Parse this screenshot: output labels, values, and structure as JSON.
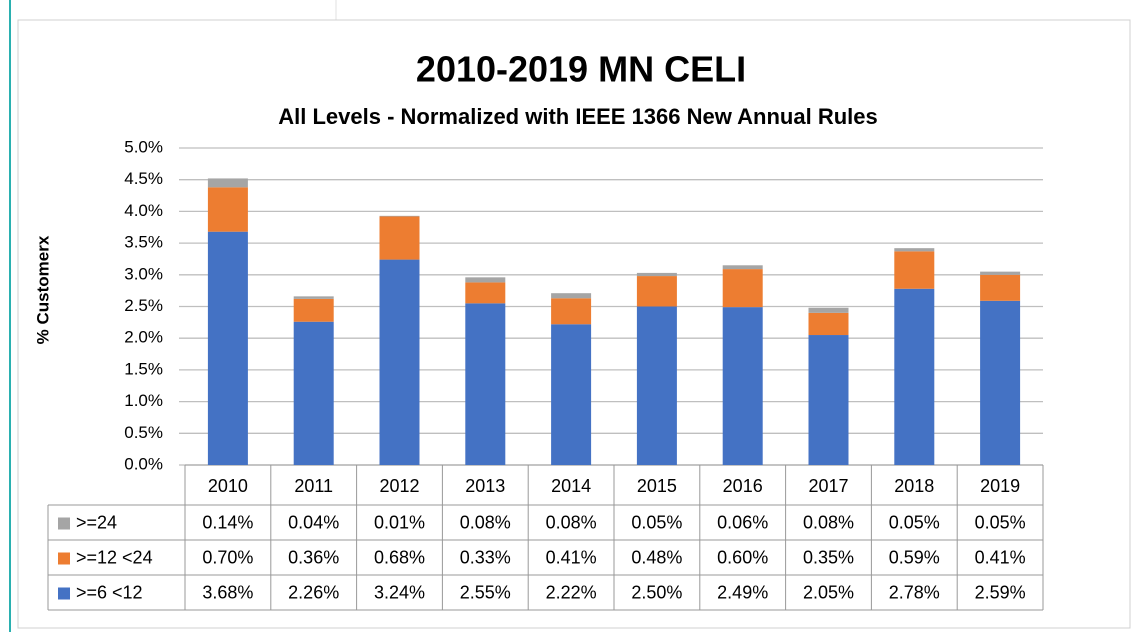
{
  "chart_data": {
    "type": "bar",
    "stacked": true,
    "title": "2010-2019 MN CELI",
    "subtitle": "All Levels - Normalized with IEEE 1366 New Annual Rules",
    "y_label": "% Customerx",
    "categories": [
      "2010",
      "2011",
      "2012",
      "2013",
      "2014",
      "2015",
      "2016",
      "2017",
      "2018",
      "2019"
    ],
    "series": [
      {
        "name": ">=24",
        "color": "#a5a5a5",
        "values": [
          0.14,
          0.04,
          0.01,
          0.08,
          0.08,
          0.05,
          0.06,
          0.08,
          0.05,
          0.05
        ],
        "value_labels": [
          "0.14%",
          "0.04%",
          "0.01%",
          "0.08%",
          "0.08%",
          "0.05%",
          "0.06%",
          "0.08%",
          "0.05%",
          "0.05%"
        ]
      },
      {
        "name": ">=12 <24",
        "color": "#ed7d31",
        "values": [
          0.7,
          0.36,
          0.68,
          0.33,
          0.41,
          0.48,
          0.6,
          0.35,
          0.59,
          0.41
        ],
        "value_labels": [
          "0.70%",
          "0.36%",
          "0.68%",
          "0.33%",
          "0.41%",
          "0.48%",
          "0.60%",
          "0.35%",
          "0.59%",
          "0.41%"
        ]
      },
      {
        "name": ">=6 <12",
        "color": "#4472c4",
        "values": [
          3.68,
          2.26,
          3.24,
          2.55,
          2.22,
          2.5,
          2.49,
          2.05,
          2.78,
          2.59
        ],
        "value_labels": [
          "3.68%",
          "2.26%",
          "3.24%",
          "2.55%",
          "2.22%",
          "2.50%",
          "2.49%",
          "2.05%",
          "2.78%",
          "2.59%"
        ]
      }
    ],
    "ylim": [
      0,
      5
    ],
    "yticks": [
      {
        "value": 0,
        "label": "0.0%"
      },
      {
        "value": 0.5,
        "label": "0.5%"
      },
      {
        "value": 1,
        "label": "1.0%"
      },
      {
        "value": 1.5,
        "label": "1.5%"
      },
      {
        "value": 2,
        "label": "2.0%"
      },
      {
        "value": 2.5,
        "label": "2.5%"
      },
      {
        "value": 3,
        "label": "3.0%"
      },
      {
        "value": 3.5,
        "label": "3.5%"
      },
      {
        "value": 4,
        "label": "4.0%"
      },
      {
        "value": 4.5,
        "label": "4.5%"
      },
      {
        "value": 5,
        "label": "5.0%"
      }
    ],
    "grid": true
  }
}
